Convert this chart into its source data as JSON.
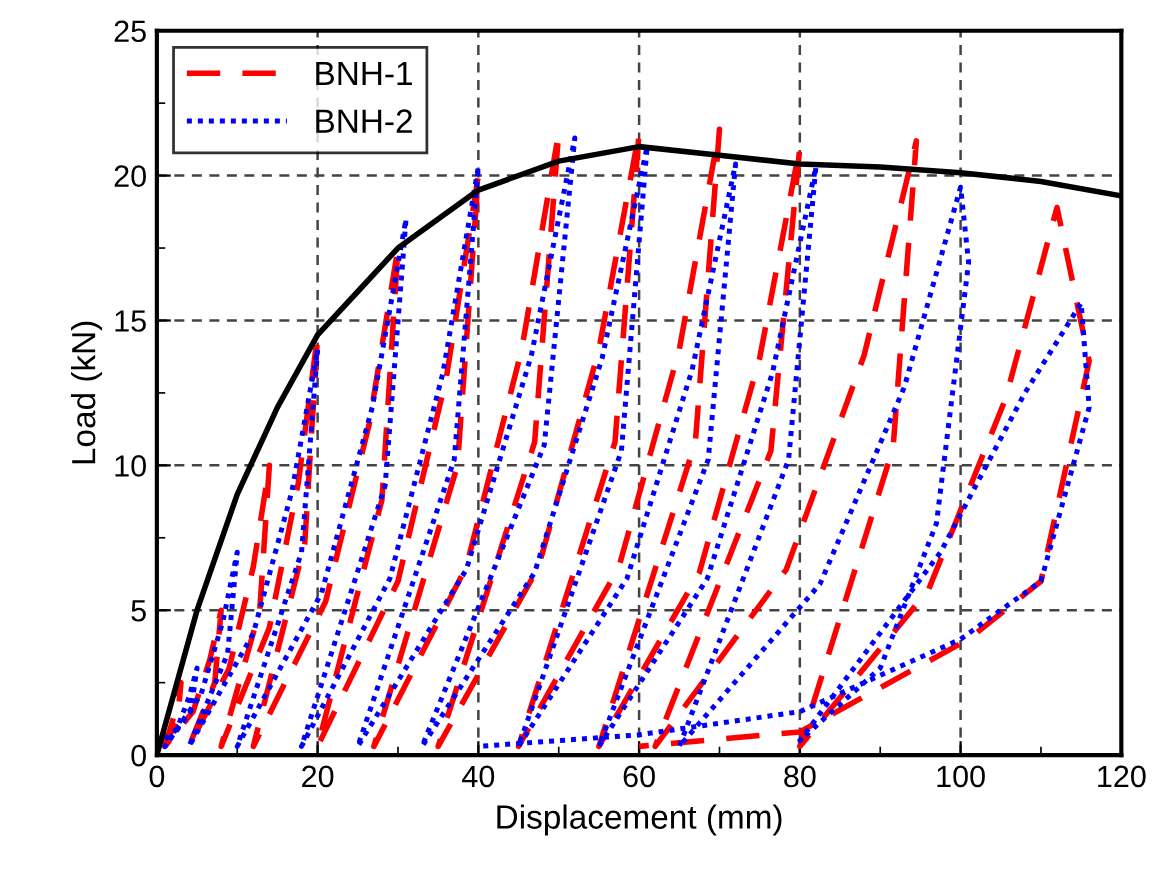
{
  "chart_data": {
    "type": "line",
    "xlabel": "Displacement (mm)",
    "ylabel": "Load (kN)",
    "xlim": [
      0,
      120
    ],
    "ylim": [
      0,
      25
    ],
    "xticks": [
      0,
      20,
      40,
      60,
      80,
      100,
      120
    ],
    "yticks": [
      0,
      5,
      10,
      15,
      20,
      25
    ],
    "grid": true,
    "legend": "top left",
    "series": [
      {
        "name": "BNH-1",
        "color": "#ff0000",
        "line_style": "dashed",
        "x": [
          0,
          1.5,
          2.4,
          3,
          2.6,
          1,
          4.5,
          6.6,
          8,
          7.2,
          4,
          9,
          12,
          14,
          12.8,
          8,
          14,
          17.6,
          20,
          18.4,
          12,
          21,
          26.4,
          30,
          28,
          20,
          30,
          36,
          40,
          37.4,
          27,
          38.5,
          45.4,
          50,
          47,
          35,
          47.5,
          55,
          60,
          57,
          45,
          57.5,
          65,
          70,
          67,
          55,
          67.5,
          75,
          80,
          76.4,
          62,
          78.3,
          88,
          94.5,
          91.6,
          80,
          96,
          105.6,
          112,
          116,
          110,
          101,
          80,
          60
        ],
        "values": [
          0.3,
          0.75,
          1.6,
          2.5,
          1.3,
          0.3,
          1.5,
          3.3,
          5,
          2.5,
          0.3,
          3,
          6.5,
          10,
          5,
          0.3,
          4.4,
          9.4,
          14.5,
          7.3,
          0.3,
          5.3,
          11.4,
          17.5,
          8.8,
          0.3,
          6,
          13,
          20,
          10,
          0.3,
          6.5,
          14,
          21.5,
          10.8,
          0.3,
          6.5,
          14,
          21.5,
          10.8,
          0.3,
          6.5,
          14,
          21.6,
          10.8,
          0.3,
          6.3,
          13.7,
          21,
          10.5,
          0.3,
          6.4,
          13.8,
          21.2,
          10.6,
          0.3,
          5.7,
          12.3,
          18.9,
          13.6,
          6,
          4,
          0.8,
          0.3
        ]
      },
      {
        "name": "BNH-2",
        "color": "#0000ff",
        "line_style": "dotted",
        "x": [
          0,
          2.5,
          4,
          5,
          4.2,
          1,
          5.5,
          8.2,
          10,
          8.8,
          4,
          12,
          16.8,
          20,
          18,
          10,
          20.5,
          26.8,
          31,
          28.4,
          18,
          29,
          35.6,
          40,
          37,
          25,
          38.5,
          46.6,
          52,
          48.2,
          33,
          47,
          55.4,
          61,
          57.8,
          45,
          58.5,
          66.6,
          72,
          68.6,
          55,
          68.5,
          76.6,
          82,
          78.6,
          65,
          82.5,
          93,
          100,
          101,
          97,
          90,
          80,
          97.5,
          108,
          115,
          116,
          110,
          100,
          80,
          60,
          40
        ],
        "values": [
          0.3,
          0.9,
          2,
          3,
          1.5,
          0.3,
          2.1,
          4.6,
          7,
          3.5,
          0.3,
          4.2,
          9.1,
          14,
          7,
          0.3,
          5.6,
          12,
          18.5,
          9.3,
          0.3,
          6.1,
          13.2,
          20.3,
          10.2,
          0.3,
          6.4,
          13.8,
          21.3,
          10.7,
          0.3,
          6.3,
          13.7,
          21,
          10.5,
          0.3,
          6.1,
          13.3,
          20.4,
          10.2,
          0.3,
          6.1,
          13.2,
          20.3,
          10.2,
          0.3,
          5.9,
          12.7,
          19.6,
          17,
          8,
          3,
          0.5,
          7,
          12.5,
          15.6,
          12,
          6,
          4,
          1.5,
          0.7,
          0.3
        ]
      },
      {
        "color": "#000000",
        "line_style": "solid",
        "x": [
          0,
          5,
          10,
          15,
          20,
          25,
          30,
          40,
          50,
          60,
          70,
          80,
          90,
          100,
          110,
          120
        ],
        "values": [
          0,
          5,
          9,
          12,
          14.5,
          16,
          17.5,
          19.5,
          20.5,
          21,
          20.7,
          20.4,
          20.3,
          20.1,
          19.8,
          19.3
        ]
      }
    ]
  }
}
